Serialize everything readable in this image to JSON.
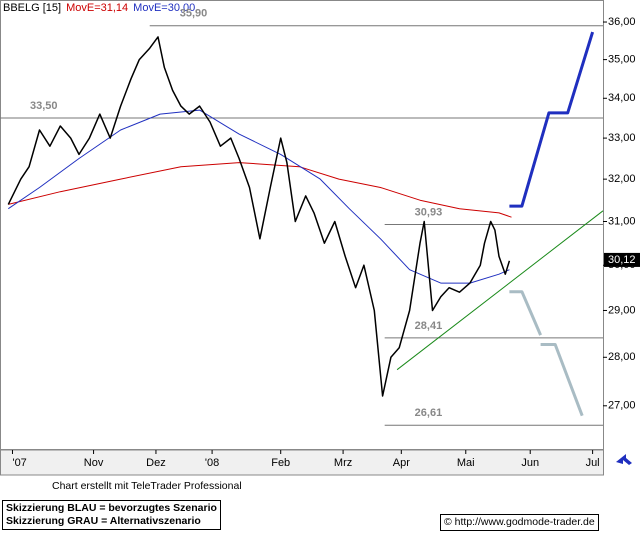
{
  "chart_data": {
    "type": "line",
    "legend": [
      "chart_data.series.0.name",
      "chart_data.series.1.name",
      "chart_data.series.2.name"
    ],
    "ylim": [
      26.12,
      36.19
    ],
    "log": true,
    "yticks": [
      {
        "value": 27,
        "label": "27,00"
      },
      {
        "value": 28,
        "label": "28,00"
      },
      {
        "value": 29,
        "label": "29,00"
      },
      {
        "value": 30,
        "label": "30,00"
      },
      {
        "value": 31,
        "label": "31,00"
      },
      {
        "value": 32,
        "label": "32,00"
      },
      {
        "value": 33,
        "label": "33,00"
      },
      {
        "value": 34,
        "label": "34,00"
      },
      {
        "value": 35,
        "label": "35,00"
      },
      {
        "value": 36,
        "label": "36,00"
      }
    ],
    "xlim": [
      0,
      290
    ],
    "xticks": [
      {
        "value": 6,
        "label": "'07"
      },
      {
        "value": 45,
        "label": "Nov"
      },
      {
        "value": 75,
        "label": "Dez"
      },
      {
        "value": 102,
        "label": "'08"
      },
      {
        "value": 135,
        "label": "Feb"
      },
      {
        "value": 165,
        "label": "Mrz"
      },
      {
        "value": 193,
        "label": "Apr"
      },
      {
        "value": 224,
        "label": "Mai"
      },
      {
        "value": 255,
        "label": "Jun"
      },
      {
        "value": 285,
        "label": "Jul"
      }
    ],
    "series": [
      {
        "name": "BBELG [15]",
        "color": "#000000",
        "x": [
          4,
          10,
          14,
          19,
          24,
          29,
          34,
          38,
          43,
          48,
          53,
          58,
          63,
          67,
          72,
          76,
          79,
          83,
          87,
          91,
          96,
          101,
          106,
          111,
          115,
          120,
          125,
          130,
          135,
          138,
          142,
          147,
          151,
          156,
          161,
          166,
          171,
          175,
          180,
          184,
          188,
          192,
          197,
          202,
          204,
          208,
          212,
          216,
          221,
          226,
          231,
          233,
          236,
          238,
          240,
          243,
          245
        ],
        "values": [
          31.4,
          32.0,
          32.3,
          33.2,
          32.8,
          33.3,
          33.0,
          32.6,
          33.0,
          33.6,
          33.0,
          33.8,
          34.5,
          35.0,
          35.3,
          35.6,
          34.8,
          34.2,
          33.8,
          33.6,
          33.8,
          33.4,
          32.8,
          33.0,
          32.5,
          31.8,
          30.6,
          31.8,
          33.0,
          32.4,
          31.0,
          31.6,
          31.2,
          30.5,
          31.0,
          30.2,
          29.5,
          30.0,
          29.0,
          27.2,
          28.0,
          28.2,
          29.0,
          30.5,
          31.0,
          29.0,
          29.3,
          29.5,
          29.4,
          29.6,
          30.0,
          30.5,
          31.0,
          30.8,
          30.2,
          29.8,
          30.1
        ]
      },
      {
        "name": "MovE=31,14",
        "color": "#cc0000",
        "x": [
          4,
          29,
          58,
          87,
          115,
          144,
          163,
          183,
          202,
          221,
          240,
          246
        ],
        "values": [
          31.4,
          31.7,
          32.0,
          32.3,
          32.4,
          32.3,
          32.0,
          31.8,
          31.5,
          31.3,
          31.2,
          31.1
        ]
      },
      {
        "name": "MovE=30,00",
        "color": "#2030c0",
        "x": [
          4,
          19,
          38,
          58,
          77,
          96,
          115,
          135,
          154,
          168,
          183,
          197,
          212,
          226,
          240,
          245
        ],
        "values": [
          31.3,
          31.8,
          32.5,
          33.2,
          33.6,
          33.7,
          33.1,
          32.6,
          32.0,
          31.3,
          30.6,
          29.9,
          29.6,
          29.6,
          29.8,
          29.9
        ]
      }
    ],
    "levels": [
      {
        "value": 35.9,
        "label": "35,90",
        "x": [
          72,
          290
        ]
      },
      {
        "value": 33.5,
        "label": "33,50",
        "x": [
          0,
          290
        ]
      },
      {
        "value": 30.93,
        "label": "30,93",
        "x": [
          185,
          290
        ]
      },
      {
        "value": 28.41,
        "label": "28,41",
        "x": [
          185,
          290
        ]
      },
      {
        "value": 26.61,
        "label": "26,61",
        "x": [
          185,
          290
        ]
      }
    ],
    "trendline": {
      "color": "#1a8a1a",
      "x": [
        191,
        290
      ],
      "values": [
        27.74,
        31.25
      ]
    },
    "scenarios": [
      {
        "color": "#1f2fbf",
        "x": [
          245,
          251,
          264,
          273,
          285
        ],
        "values": [
          31.36,
          31.36,
          33.63,
          33.63,
          35.73
        ]
      },
      {
        "color": "#a9bcc4",
        "x": [
          245,
          251,
          260,
          null,
          260,
          267,
          280
        ],
        "values": [
          29.41,
          29.41,
          28.47,
          null,
          28.27,
          28.27,
          26.8
        ]
      }
    ],
    "last_price": {
      "value": 30.12,
      "label": "30,12"
    },
    "credit": "Chart erstellt mit TeleTrader Professional",
    "notes": [
      "Skizzierung BLAU = bevorzugtes Szenario",
      "Skizzierung GRAU = Alternativszenario"
    ],
    "source": "© http://www.godmode-trader.de"
  }
}
